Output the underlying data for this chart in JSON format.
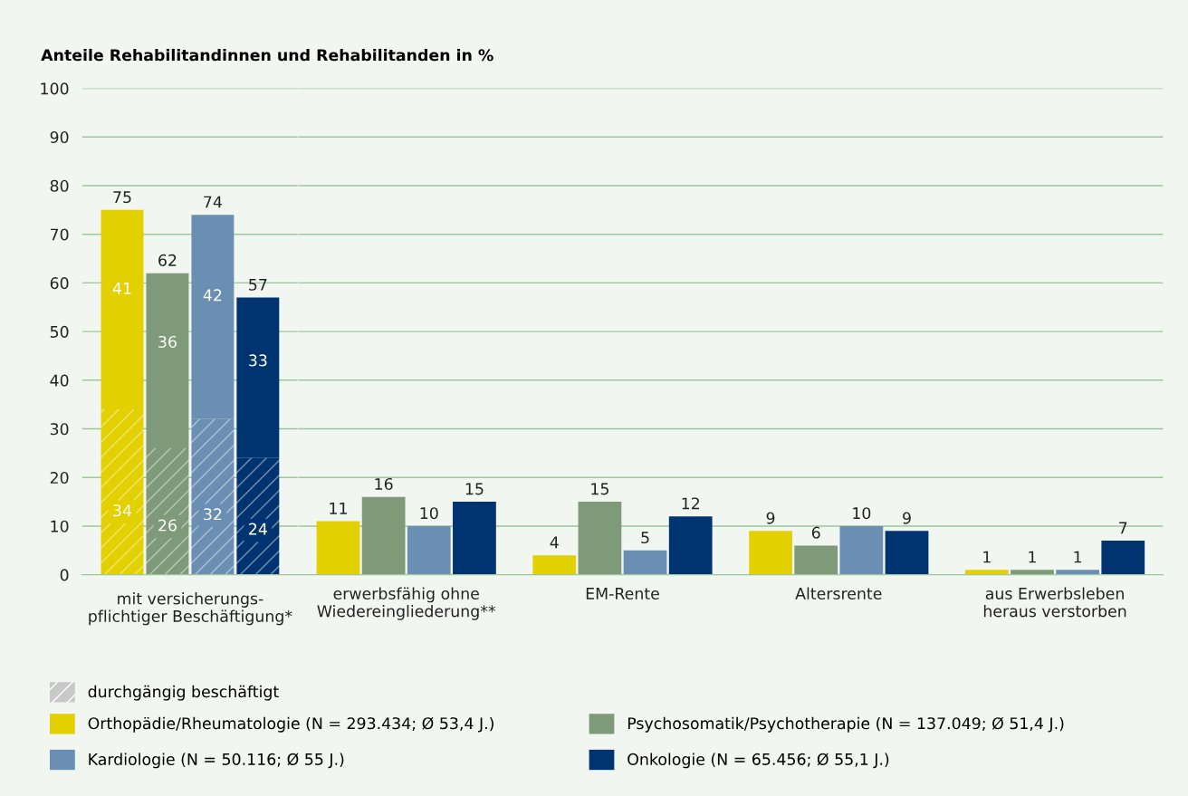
{
  "chart_data": [
    {
      "type": "bar",
      "ylabel": "Anteile Rehabilitandinnen und Rehabilitanden in %",
      "xlabel": "mit versicherungs-\npflichtiger Beschäftigung*",
      "categories": [
        null,
        null,
        null,
        null
      ],
      "stacked": true,
      "series": [
        {
          "name": "durchgängig beschäftigt",
          "color": "#c8c8c8",
          "colors": [
            "#e3d000",
            "#7e9a78",
            "#6a8fb2",
            "#003471"
          ],
          "values": [
            34,
            26,
            32,
            24
          ]
        },
        {
          "colors": [
            "#e3d000",
            "#7e9a78",
            "#6a8fb2",
            "#003471"
          ],
          "values": [
            41,
            36,
            42,
            33
          ]
        }
      ],
      "totals": [
        "75",
        "62",
        "74",
        "57"
      ],
      "data_labels": true,
      "ylim": [
        0,
        100
      ],
      "yticks": [
        0,
        10,
        20,
        30,
        40,
        50,
        60,
        70,
        80,
        90,
        100
      ],
      "grid": "y",
      "legend": "bottom"
    },
    {
      "type": "bar",
      "categories": [
        "erwerbsfähig ohne\nWiedereingliederung**",
        "EM-Rente",
        "Altersrente",
        "aus Erwerbsleben\nheraus verstorben"
      ],
      "series": [
        {
          "name": "Orthopädie/Rheumatologie (N = 293.434; Ø 53,4 J.)",
          "color": "#e3d000",
          "values": [
            11,
            4,
            9,
            1
          ]
        },
        {
          "name": "Psychosomatik/Psychotherapie (N = 137.049; Ø 51,4 J.)",
          "color": "#7e9a78",
          "values": [
            16,
            15,
            6,
            1
          ]
        },
        {
          "name": "Kardiologie (N = 50.116; Ø 55 J.)",
          "color": "#6a8fb2",
          "values": [
            10,
            5,
            10,
            1
          ]
        },
        {
          "name": "Onkologie (N = 65.456; Ø 55,1 J.)",
          "color": "#003471",
          "values": [
            15,
            12,
            9,
            7
          ]
        }
      ],
      "data_labels": true,
      "ylim": [
        0,
        100
      ],
      "yticks": [
        0,
        10,
        20,
        30,
        40,
        50,
        60,
        70,
        80,
        90,
        100
      ],
      "tick_labels": "x",
      "grid": "y",
      "legend": "bottom"
    }
  ]
}
